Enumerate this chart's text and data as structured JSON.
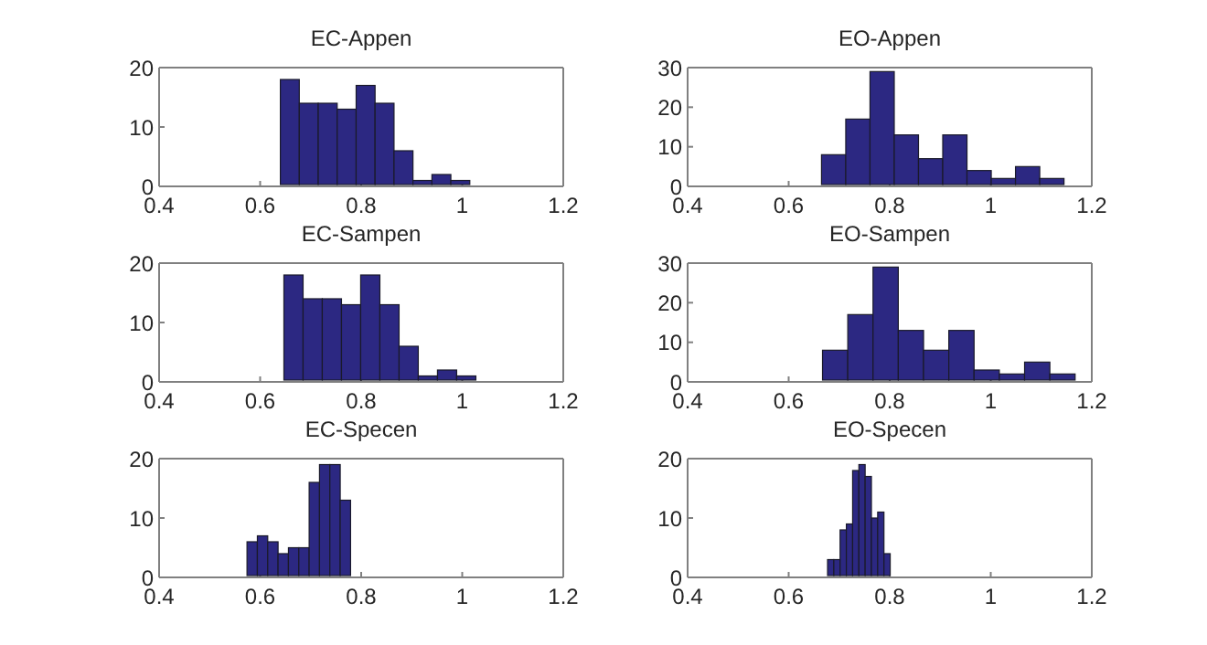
{
  "chart_data": [
    {
      "type": "histogram",
      "title": "EC-Appen",
      "color": "#2c2882",
      "bins": [
        0.64,
        0.6775,
        0.715,
        0.7525,
        0.79,
        0.8275,
        0.865,
        0.9025,
        0.94,
        0.9775,
        1.015
      ],
      "values": [
        18,
        14,
        14,
        13,
        17,
        14,
        6,
        1,
        2,
        1
      ],
      "xlim": [
        0.4,
        1.2
      ],
      "xticks": [
        0.4,
        0.6,
        0.8,
        1,
        1.2
      ],
      "ylim": [
        0,
        20
      ],
      "yticks": [
        0,
        10,
        20
      ]
    },
    {
      "type": "histogram",
      "title": "EO-Appen",
      "color": "#2c2882",
      "bins": [
        0.665,
        0.713,
        0.761,
        0.809,
        0.857,
        0.905,
        0.953,
        1.001,
        1.049,
        1.097,
        1.145
      ],
      "values": [
        8,
        17,
        29,
        13,
        7,
        13,
        4,
        2,
        5,
        2
      ],
      "xlim": [
        0.4,
        1.2
      ],
      "xticks": [
        0.4,
        0.6,
        0.8,
        1,
        1.2
      ],
      "ylim": [
        0,
        30
      ],
      "yticks": [
        0,
        10,
        20,
        30
      ]
    },
    {
      "type": "histogram",
      "title": "EC-Sampen",
      "color": "#2c2882",
      "bins": [
        0.647,
        0.685,
        0.723,
        0.761,
        0.799,
        0.837,
        0.875,
        0.913,
        0.951,
        0.989,
        1.027
      ],
      "values": [
        18,
        14,
        14,
        13,
        18,
        13,
        6,
        1,
        2,
        1
      ],
      "xlim": [
        0.4,
        1.2
      ],
      "xticks": [
        0.4,
        0.6,
        0.8,
        1,
        1.2
      ],
      "ylim": [
        0,
        20
      ],
      "yticks": [
        0,
        10,
        20
      ]
    },
    {
      "type": "histogram",
      "title": "EO-Sampen",
      "color": "#2c2882",
      "bins": [
        0.667,
        0.717,
        0.767,
        0.817,
        0.867,
        0.917,
        0.967,
        1.017,
        1.067,
        1.117,
        1.167
      ],
      "values": [
        8,
        17,
        29,
        13,
        8,
        13,
        3,
        2,
        5,
        2
      ],
      "xlim": [
        0.4,
        1.2
      ],
      "xticks": [
        0.4,
        0.6,
        0.8,
        1,
        1.2
      ],
      "ylim": [
        0,
        30
      ],
      "yticks": [
        0,
        10,
        20,
        30
      ]
    },
    {
      "type": "histogram",
      "title": "EC-Specen",
      "color": "#2c2882",
      "bins": [
        0.574,
        0.5945,
        0.615,
        0.6355,
        0.656,
        0.6765,
        0.697,
        0.7175,
        0.738,
        0.7585,
        0.779
      ],
      "values": [
        6,
        7,
        6,
        4,
        5,
        5,
        16,
        19,
        19,
        13
      ],
      "xlim": [
        0.4,
        1.2
      ],
      "xticks": [
        0.4,
        0.6,
        0.8,
        1,
        1.2
      ],
      "ylim": [
        0,
        20
      ],
      "yticks": [
        0,
        10,
        20
      ]
    },
    {
      "type": "histogram",
      "title": "EO-Specen",
      "color": "#2c2882",
      "bins": [
        0.677,
        0.6894,
        0.7018,
        0.7142,
        0.7266,
        0.739,
        0.7514,
        0.7638,
        0.7762,
        0.7886,
        0.801
      ],
      "values": [
        3,
        3,
        8,
        9,
        18,
        19,
        17,
        10,
        11,
        4
      ],
      "xlim": [
        0.4,
        1.2
      ],
      "xticks": [
        0.4,
        0.6,
        0.8,
        1,
        1.2
      ],
      "ylim": [
        0,
        20
      ],
      "yticks": [
        0,
        10,
        20
      ]
    }
  ]
}
